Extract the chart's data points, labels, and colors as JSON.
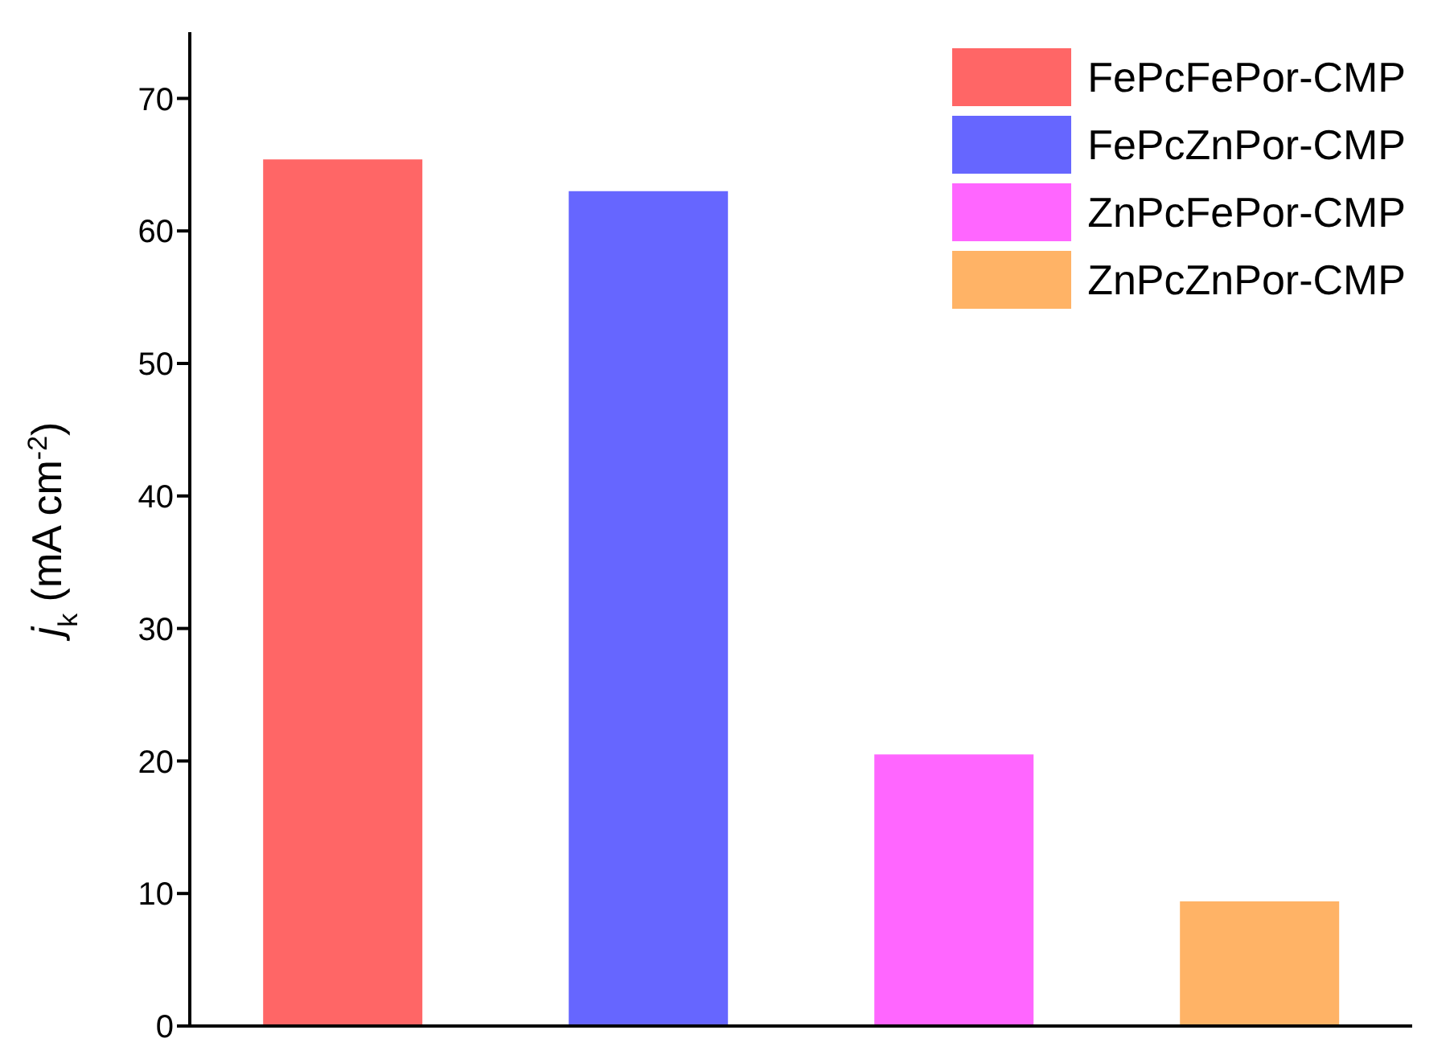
{
  "chart_data": {
    "type": "bar",
    "ylabel": "j$_{k}$ (mA cm$^{-2}$)",
    "categories": [
      null,
      null,
      null,
      null
    ],
    "stacked": true,
    "ylim": [
      0,
      75
    ],
    "yticks": [
      0,
      10,
      20,
      30,
      40,
      50,
      60,
      70
    ],
    "tick_labels": "y",
    "grid": false,
    "legend": "top right",
    "series": [
      {
        "name": "FePcFePor-CMP",
        "color": "#ff6666",
        "values": [
          65.4,
          null,
          null,
          null
        ]
      },
      {
        "name": "FePcZnPor-CMP",
        "color": "#6666ff",
        "values": [
          null,
          63,
          null,
          null
        ]
      },
      {
        "name": "ZnPcFePor-CMP",
        "color": "#ff66ff",
        "values": [
          null,
          null,
          20.5,
          null
        ]
      },
      {
        "name": "ZnPcZnPor-CMP",
        "color": "#ffb366",
        "values": [
          null,
          null,
          null,
          9.4
        ]
      }
    ]
  }
}
